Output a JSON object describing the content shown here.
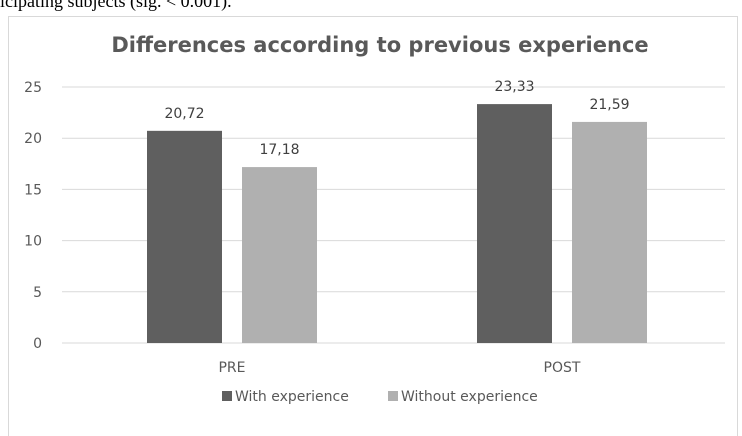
{
  "document": {
    "text_above": "icipating subjects (sig. < 0.001)."
  },
  "chart_data": {
    "type": "bar",
    "title": "Differences according to previous experience",
    "categories": [
      "PRE",
      "POST"
    ],
    "series": [
      {
        "name": "With experience",
        "values": [
          20.72,
          23.33
        ],
        "labels": [
          "20,72",
          "23,33"
        ],
        "color": "#5f5f5f"
      },
      {
        "name": "Without experience",
        "values": [
          17.18,
          21.59
        ],
        "labels": [
          "17,18",
          "21,59"
        ],
        "color": "#b0b0b0"
      }
    ],
    "ylim": [
      0,
      25
    ],
    "yticks": [
      "0",
      "5",
      "10",
      "15",
      "20",
      "25"
    ],
    "grid": true,
    "legend": "bottom",
    "xlabel": "",
    "ylabel": ""
  }
}
